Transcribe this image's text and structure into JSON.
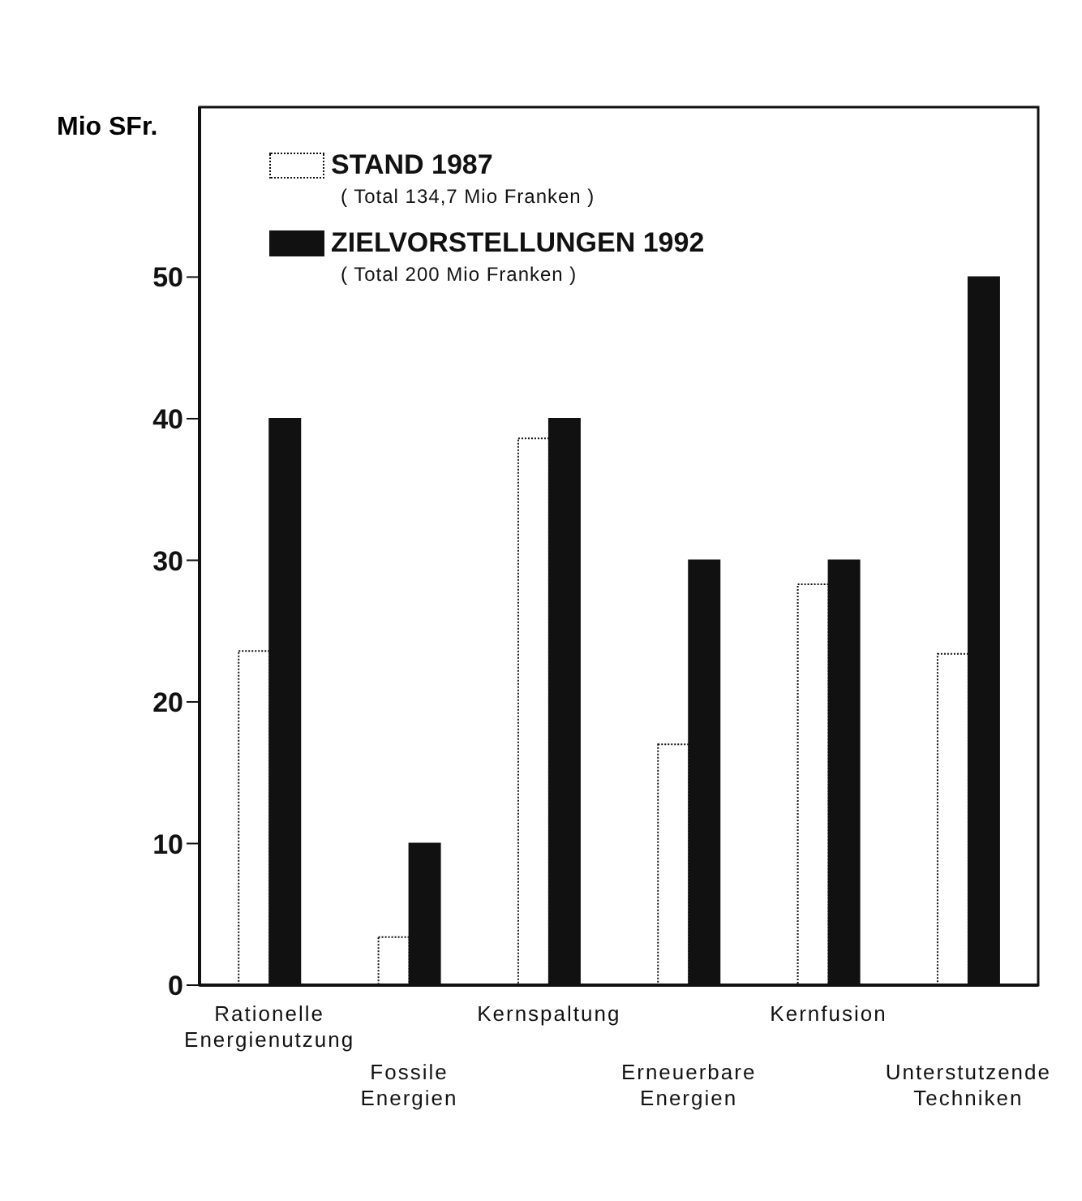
{
  "chart_data": {
    "type": "bar",
    "ylabel": "Mio SFr.",
    "categories": [
      "Rationelle\nEnergienutzung",
      "Fossile\nEnergien",
      "Kernspaltung",
      "Erneuerbare\nEnergien",
      "Kernfusion",
      "Unterstutzende\nTechniken"
    ],
    "series": [
      {
        "name": "STAND 1987",
        "color": "#ffffff",
        "values": [
          23.6,
          3.4,
          38.6,
          17,
          28.3,
          23.4
        ]
      },
      {
        "name": "ZIELVORSTELLUNGEN 1992",
        "color": "#111111",
        "values": [
          40,
          10,
          40,
          30,
          30,
          50
        ]
      }
    ],
    "annotations": [
      "( Total 134,7 Mio Franken )",
      "( Total 200 Mio Franken )"
    ],
    "ylim": [
      0,
      62
    ],
    "yticks": [
      0,
      10,
      20,
      30,
      40,
      50
    ],
    "legend": "top left"
  }
}
